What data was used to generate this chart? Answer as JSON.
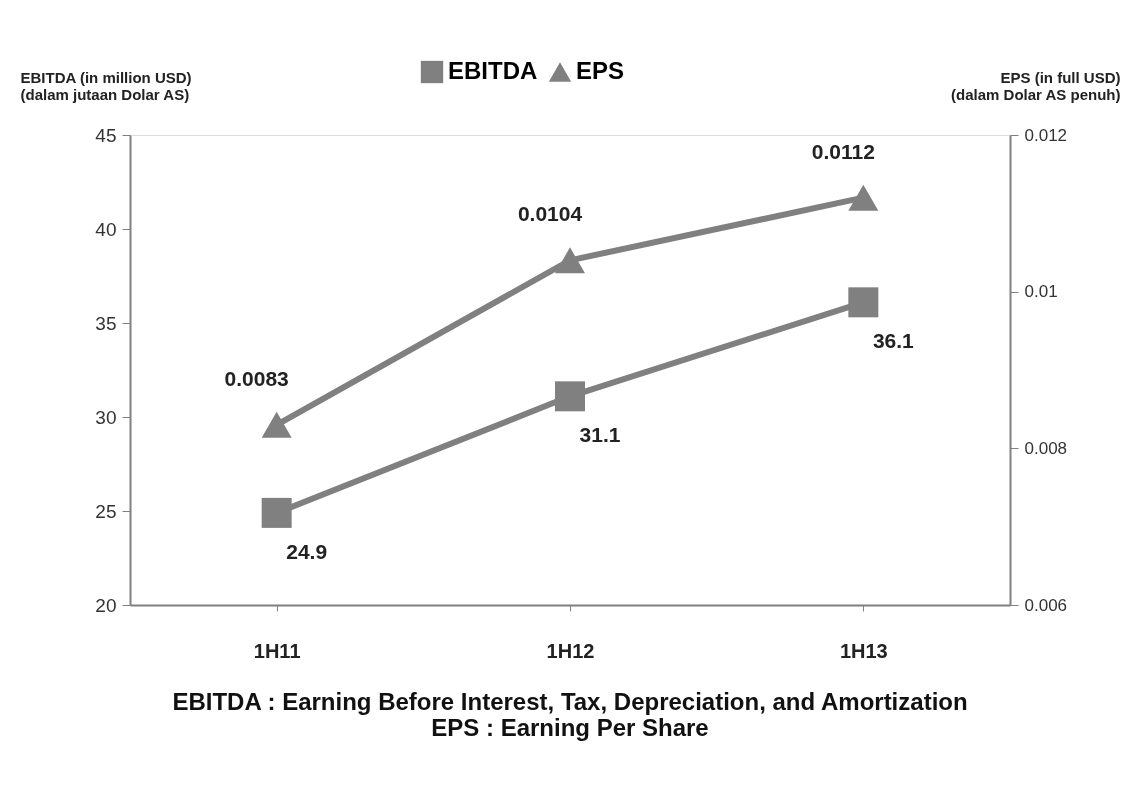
{
  "chart_data": {
    "type": "line",
    "ylabel": "EBITDA (in million USD)\n(dalam jutaan Dolar AS)",
    "y2label": "EPS (in full USD)\n(dalam Dolar AS penuh)",
    "categories": [
      "1H11",
      "1H12",
      "1H13"
    ],
    "series": [
      {
        "name": "EBITDA",
        "color": "#808080",
        "marker": "square",
        "values": [
          24.9,
          31.1,
          36.1
        ]
      },
      {
        "name": "EPS",
        "color": "#808080",
        "marker": "triangle",
        "axis": "y2",
        "values": [
          0.0083,
          0.0104,
          0.0112
        ]
      }
    ],
    "ylim": [
      20,
      45
    ],
    "yticks": [
      20,
      25,
      30,
      35,
      40,
      45
    ],
    "y2lim": [
      0.006,
      0.012
    ],
    "y2ticks": [
      0.006,
      0.008,
      0.01,
      0.012
    ],
    "data_labels": true,
    "grid": false,
    "legend": "top",
    "annotations": [
      "EBITDA : Earning Before Interest, Tax, Depreciation, and Amortization",
      "EPS : Earning Per Share"
    ]
  }
}
